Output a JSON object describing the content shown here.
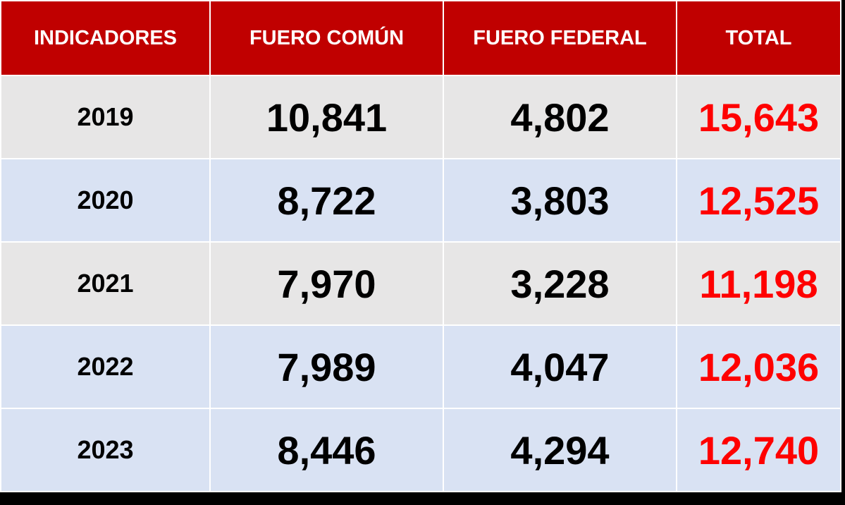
{
  "colors": {
    "header_bg": "#c00000",
    "header_text": "#ffffff",
    "row_gray": "#e7e6e6",
    "row_blue": "#d9e2f3",
    "total_text": "#ff0000"
  },
  "header": {
    "indicadores": "INDICADORES",
    "fuero_comun": "FUERO COMÚN",
    "fuero_federal": "FUERO FEDERAL",
    "total": "TOTAL"
  },
  "rows": [
    {
      "year": "2019",
      "fuero_comun": "10,841",
      "fuero_federal": "4,802",
      "total": "15,643"
    },
    {
      "year": "2020",
      "fuero_comun": "8,722",
      "fuero_federal": "3,803",
      "total": "12,525"
    },
    {
      "year": "2021",
      "fuero_comun": "7,970",
      "fuero_federal": "3,228",
      "total": "11,198"
    },
    {
      "year": "2022",
      "fuero_comun": "7,989",
      "fuero_federal": "4,047",
      "total": "12,036"
    },
    {
      "year": "2023",
      "fuero_comun": "8,446",
      "fuero_federal": "4,294",
      "total": "12,740"
    }
  ]
}
